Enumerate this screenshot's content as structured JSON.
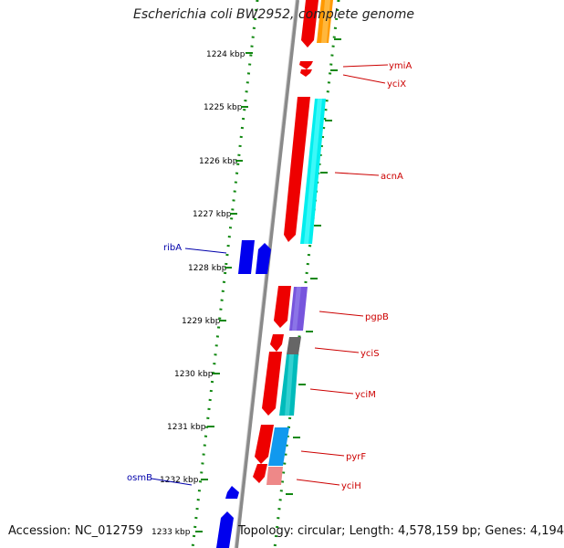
{
  "title": "Escherichia coli BW2952, complete genome",
  "footer": {
    "accession": "Accession: NC_012759",
    "info": "Topology: circular; Length: 4,578,159 bp; Genes: 4,194"
  },
  "colors": {
    "backbone": "#8a8a8a",
    "tick_dots": "#118811",
    "forward_genes": "#0000ee",
    "reverse_genes": "#ee0000",
    "label_right": "#cc0000",
    "label_left": "#0000aa"
  },
  "ticks": [
    {
      "label": "1224 kbp"
    },
    {
      "label": "1225 kbp"
    },
    {
      "label": "1226 kbp"
    },
    {
      "label": "1227 kbp"
    },
    {
      "label": "1228 kbp"
    },
    {
      "label": "1229 kbp"
    },
    {
      "label": "1230 kbp"
    },
    {
      "label": "1231 kbp"
    },
    {
      "label": "1232 kbp"
    },
    {
      "label": "1233 kbp"
    }
  ],
  "genes_right": [
    {
      "name": "ymiA"
    },
    {
      "name": "yciX"
    },
    {
      "name": "acnA"
    },
    {
      "name": "pgpB"
    },
    {
      "name": "yciS"
    },
    {
      "name": "yciM"
    },
    {
      "name": "pyrF"
    },
    {
      "name": "yciH"
    }
  ],
  "genes_left": [
    {
      "name": "ribA"
    },
    {
      "name": "osmB"
    }
  ]
}
